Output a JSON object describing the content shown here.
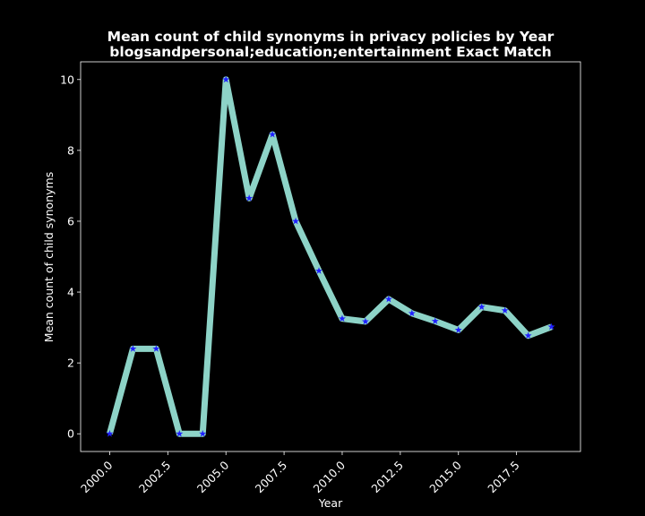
{
  "chart_data": {
    "type": "line",
    "title": "Mean count of child synonyms in privacy policies by Year",
    "subtitle": "blogsandpersonal;education;entertainment Exact Match",
    "xlabel": "Year",
    "ylabel": "Mean count of child synonyms",
    "xlim": [
      1998.75,
      2020.25
    ],
    "ylim": [
      -0.5,
      10.5
    ],
    "x_ticks": [
      2000.0,
      2002.5,
      2005.0,
      2007.5,
      2010.0,
      2012.5,
      2015.0,
      2017.5
    ],
    "x_tick_labels": [
      "2000.0",
      "2002.5",
      "2005.0",
      "2007.5",
      "2010.0",
      "2012.5",
      "2015.0",
      "2017.5"
    ],
    "y_ticks": [
      0,
      2,
      4,
      6,
      8,
      10
    ],
    "y_tick_labels": [
      "0",
      "2",
      "4",
      "6",
      "8",
      "10"
    ],
    "grid": false,
    "legend": "none",
    "colors": {
      "background": "#000000",
      "line": "#8dd3c7",
      "marker": "#1f1fff",
      "text": "#ffffff"
    },
    "series": [
      {
        "x": [
          2000,
          2001,
          2002,
          2003,
          2004,
          2005,
          2006,
          2007,
          2008,
          2009,
          2010,
          2011,
          2012,
          2013,
          2014,
          2015,
          2016,
          2017,
          2018,
          2019
        ],
        "y": [
          0.0,
          2.4,
          2.4,
          0.0,
          0.0,
          10.0,
          6.65,
          8.45,
          6.0,
          4.6,
          3.25,
          3.17,
          3.8,
          3.4,
          3.18,
          2.93,
          3.58,
          3.48,
          2.77,
          3.02
        ]
      }
    ]
  }
}
